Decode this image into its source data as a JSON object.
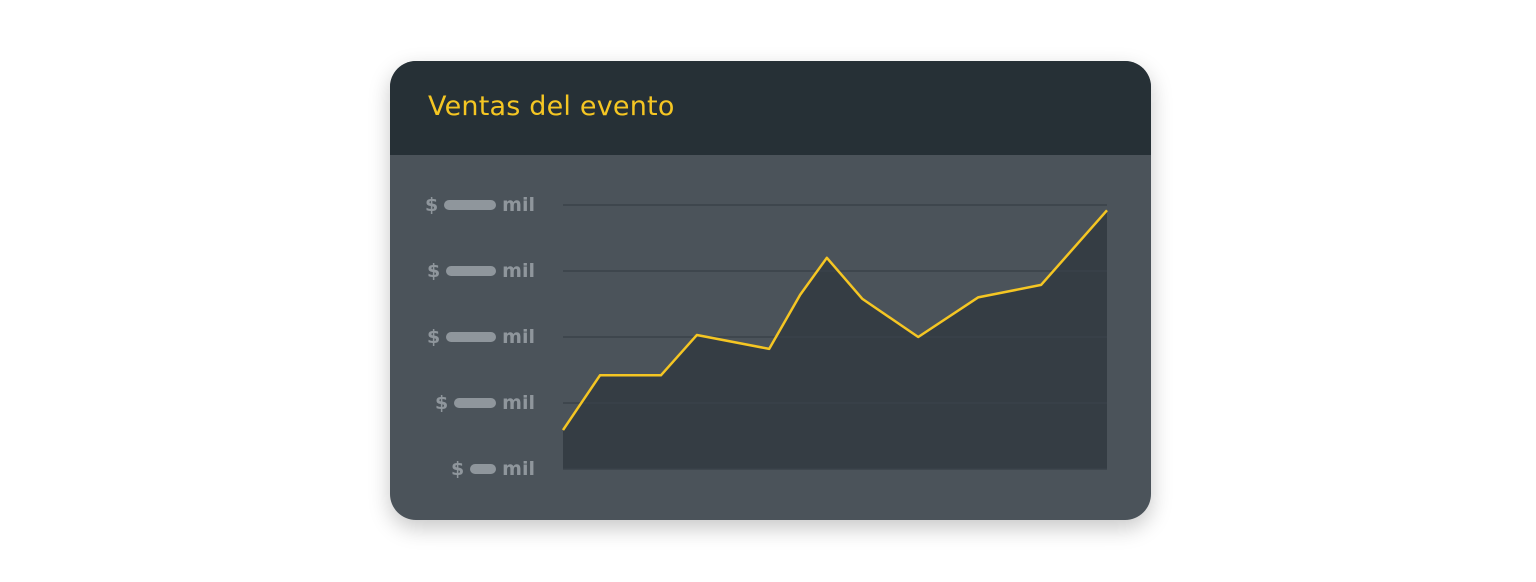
{
  "chart_data": {
    "type": "area",
    "title": "Ventas del evento",
    "xlabel": "",
    "ylabel": "",
    "ylim": [
      0,
      4
    ],
    "xlim": [
      0,
      100
    ],
    "grid": true,
    "y_tick_labels": [
      {
        "prefix": "$",
        "suffix": "mil"
      },
      {
        "prefix": "$",
        "suffix": "mil"
      },
      {
        "prefix": "$",
        "suffix": "mil"
      },
      {
        "prefix": "$",
        "suffix": "mil"
      },
      {
        "prefix": "$",
        "suffix": "mil"
      }
    ],
    "series": [
      {
        "x": [
          0,
          6.8,
          18,
          24.6,
          37.9,
          43.6,
          48.5,
          55,
          65.3,
          76.3,
          87.9,
          100
        ],
        "y": [
          0.59,
          1.42,
          1.42,
          2.03,
          1.82,
          2.64,
          3.2,
          2.58,
          2.0,
          2.6,
          2.79,
          3.92
        ]
      }
    ],
    "colors": {
      "line": "#f5c623",
      "fill": "#353d44",
      "grid": "#3a4249",
      "header": "#263036",
      "background": "#4b535a",
      "tick_text": "#8f969c"
    }
  }
}
